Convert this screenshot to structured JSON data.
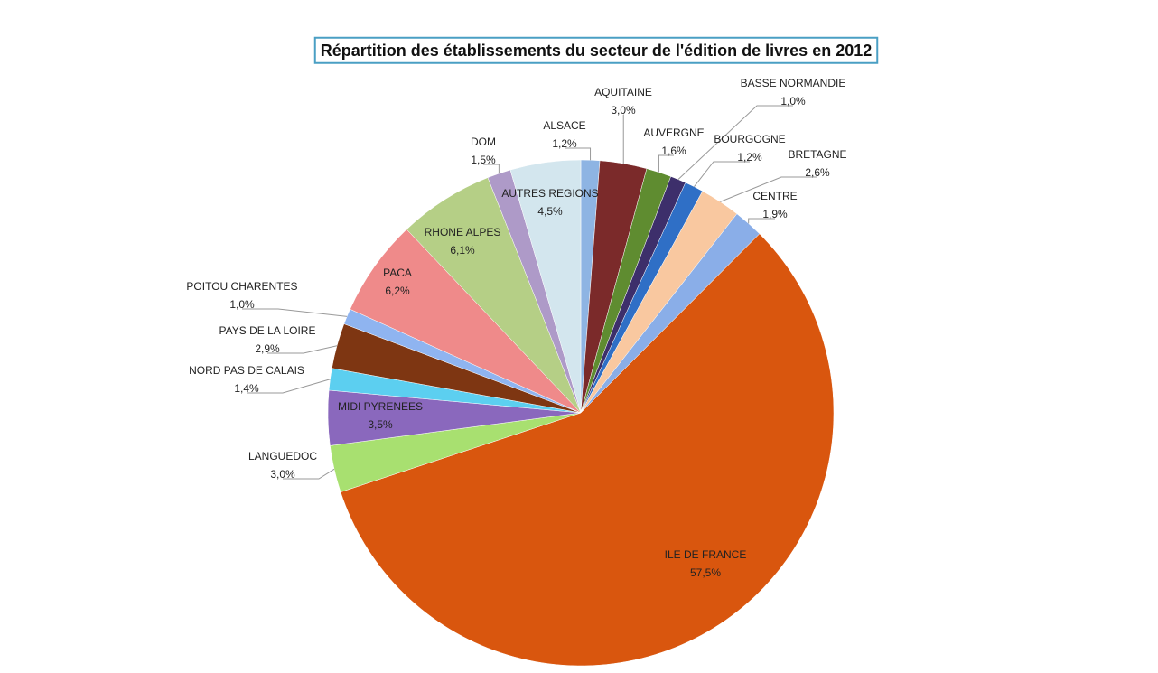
{
  "chart_data": {
    "type": "pie",
    "title": "Répartition des établissements du secteur de l'édition de livres en 2012",
    "categories": [
      "ALSACE",
      "AQUITAINE",
      "AUVERGNE",
      "BASSE NORMANDIE",
      "BOURGOGNE",
      "BRETAGNE",
      "CENTRE",
      "ILE DE FRANCE",
      "LANGUEDOC",
      "MIDI PYRENEES",
      "NORD PAS DE CALAIS",
      "PAYS DE LA LOIRE",
      "POITOU CHARENTES",
      "PACA",
      "RHONE ALPES",
      "DOM",
      "AUTRES REGIONS"
    ],
    "values": [
      1.2,
      3.0,
      1.6,
      1.0,
      1.2,
      2.6,
      1.9,
      57.5,
      3.0,
      3.5,
      1.4,
      2.9,
      1.0,
      6.2,
      6.1,
      1.5,
      4.5
    ],
    "value_labels": [
      "1,2%",
      "3,0%",
      "1,6%",
      "1,0%",
      "1,2%",
      "2,6%",
      "1,9%",
      "57,5%",
      "3,0%",
      "3,5%",
      "1,4%",
      "2,9%",
      "1,0%",
      "6,2%",
      "6,1%",
      "1,5%",
      "4,5%"
    ],
    "colors": [
      "#8eb4e3",
      "#7b2a2a",
      "#5f8c30",
      "#3d2f6b",
      "#2f6fc6",
      "#f9c8a0",
      "#8aaee8",
      "#d9560e",
      "#a8e070",
      "#8a68bd",
      "#5ccff0",
      "#7e3612",
      "#8fb4f0",
      "#ef8a8a",
      "#b5cf86",
      "#ae9ac8",
      "#d3e6ee"
    ]
  }
}
